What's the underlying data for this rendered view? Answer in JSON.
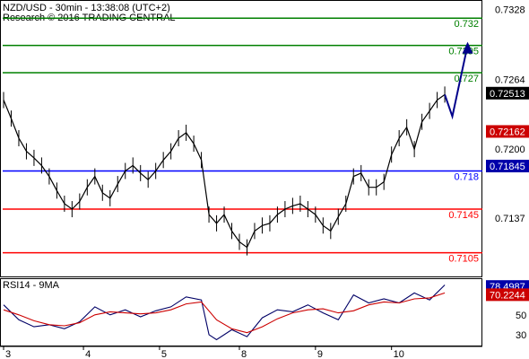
{
  "header": {
    "symbol_line": "NZD/USD - 30min - 13:38:08 (UTC+2)",
    "research_line": "Research © 2016 TRADING CENTRAL"
  },
  "chart_data": [
    {
      "type": "line",
      "name": "price",
      "ylim": [
        0.7085,
        0.7335
      ],
      "y_ticks": [
        "0.7328",
        "0.7264",
        "0.7200",
        "0.7137"
      ],
      "x_ticks": [
        "3",
        "4",
        "5",
        "8",
        "9",
        "10"
      ],
      "x_tick_pos": [
        0,
        10.5,
        20.5,
        31,
        41,
        51
      ],
      "x_range": [
        0,
        62
      ],
      "series": [
        {
          "role": "price",
          "x": [
            0,
            1,
            2,
            3,
            4,
            5,
            6,
            7,
            8,
            9,
            10,
            11,
            12,
            13,
            14,
            15,
            16,
            17,
            18,
            19,
            20,
            21,
            22,
            23,
            24,
            25,
            26,
            27,
            28,
            29,
            30,
            31,
            32,
            33,
            34,
            35,
            36,
            37,
            38,
            39,
            40,
            41,
            42,
            43,
            44,
            45,
            46,
            47,
            48,
            49,
            50,
            51,
            52,
            53,
            54,
            55,
            56,
            57,
            58
          ],
          "values": [
            0.7245,
            0.7228,
            0.721,
            0.7198,
            0.7192,
            0.7185,
            0.7175,
            0.7162,
            0.715,
            0.7145,
            0.7152,
            0.7165,
            0.7175,
            0.716,
            0.7155,
            0.7168,
            0.718,
            0.7185,
            0.7178,
            0.7172,
            0.718,
            0.719,
            0.7198,
            0.721,
            0.7215,
            0.7205,
            0.719,
            0.714,
            0.7132,
            0.714,
            0.7125,
            0.7115,
            0.711,
            0.7125,
            0.713,
            0.7132,
            0.714,
            0.7145,
            0.7148,
            0.715,
            0.7145,
            0.714,
            0.713,
            0.7125,
            0.7138,
            0.715,
            0.7175,
            0.7178,
            0.7165,
            0.7165,
            0.717,
            0.7195,
            0.721,
            0.722,
            0.72,
            0.7225,
            0.7235,
            0.7245,
            0.725
          ]
        },
        {
          "role": "forecast",
          "x": [
            58,
            59,
            61
          ],
          "values": [
            0.725,
            0.723,
            0.7295
          ]
        }
      ],
      "levels": [
        {
          "value": 0.732,
          "label": "0.732",
          "color": "#008000"
        },
        {
          "value": 0.7295,
          "label": "0.7295",
          "color": "#008000"
        },
        {
          "value": 0.727,
          "label": "0.727",
          "color": "#008000"
        },
        {
          "value": 0.718,
          "label": "0.718",
          "color": "#0000ff"
        },
        {
          "value": 0.7145,
          "label": "0.7145",
          "color": "#ff0000"
        },
        {
          "value": 0.7105,
          "label": "0.7105",
          "color": "#ff0000"
        }
      ],
      "price_tags": [
        {
          "value": 0.72513,
          "label": "0.72513",
          "bg": "#000000"
        },
        {
          "value": 0.72162,
          "label": "0.72162",
          "bg": "#cc0000"
        },
        {
          "value": 0.71845,
          "label": "0.71845",
          "bg": "#0000aa"
        }
      ]
    },
    {
      "type": "line",
      "name": "rsi",
      "title": "RSI14 - 9MA",
      "ylim": [
        20,
        85
      ],
      "y_ticks": [
        "50",
        "30"
      ],
      "y_tick_values": [
        50,
        30
      ],
      "series": [
        {
          "role": "rsi",
          "x": [
            0,
            2,
            4,
            6,
            8,
            10,
            12,
            14,
            16,
            18,
            20,
            22,
            24,
            26,
            27,
            28,
            30,
            32,
            34,
            36,
            38,
            40,
            42,
            44,
            46,
            48,
            50,
            52,
            54,
            56,
            58
          ],
          "values": [
            60,
            45,
            38,
            40,
            36,
            43,
            58,
            50,
            55,
            48,
            54,
            58,
            68,
            65,
            30,
            25,
            35,
            28,
            47,
            55,
            53,
            60,
            52,
            45,
            70,
            62,
            66,
            62,
            72,
            65,
            80
          ]
        },
        {
          "role": "ma",
          "x": [
            0,
            2,
            4,
            6,
            8,
            10,
            12,
            14,
            16,
            18,
            20,
            22,
            24,
            26,
            28,
            30,
            32,
            34,
            36,
            38,
            40,
            42,
            44,
            46,
            48,
            50,
            52,
            54,
            56,
            58
          ],
          "values": [
            55,
            50,
            44,
            40,
            39,
            42,
            50,
            53,
            52,
            51,
            52,
            55,
            61,
            63,
            45,
            36,
            32,
            38,
            46,
            52,
            55,
            56,
            52,
            54,
            60,
            63,
            62,
            66,
            67,
            72
          ]
        }
      ],
      "value_tags": [
        {
          "value": 78.4987,
          "label": "78.4987",
          "bg": "#0000aa"
        },
        {
          "value": 70.2244,
          "label": "70.2244",
          "bg": "#cc0000"
        }
      ]
    }
  ]
}
